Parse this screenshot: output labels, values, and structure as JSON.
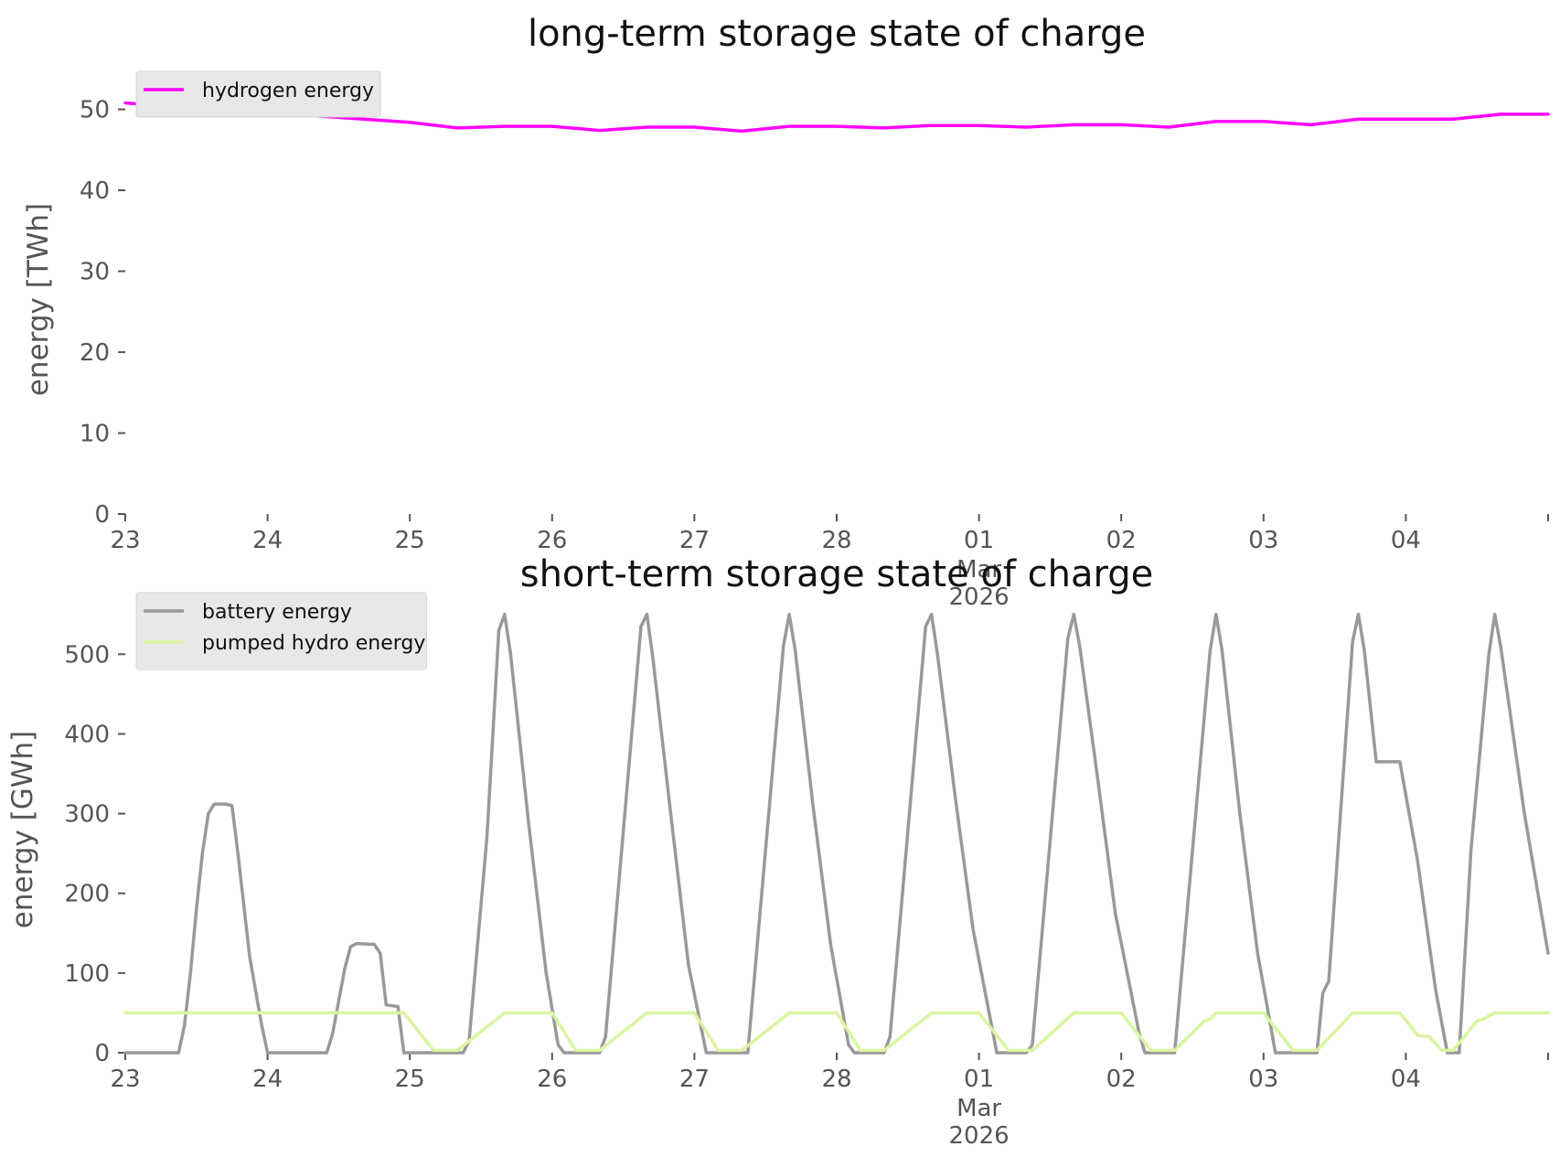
{
  "chart_data": [
    {
      "type": "line",
      "title": "long-term storage state of charge",
      "xlabel": "",
      "ylabel": "energy [TWh]",
      "x_range": [
        "2026-02-23",
        "2026-03-05"
      ],
      "ylim": [
        0,
        53
      ],
      "yticks": [
        0,
        10,
        20,
        30,
        40,
        50
      ],
      "xtick_labels": [
        "23",
        "24",
        "25",
        "26",
        "27",
        "28",
        "01",
        "02",
        "03",
        "04",
        ""
      ],
      "x_month_label": "Mar",
      "x_year_label": "2026",
      "grid": false,
      "legend": "upper-left",
      "series": [
        {
          "name": "hydrogen energy",
          "color": "#ff00ff",
          "points": [
            [
              "2026-02-23T00:00",
              50.8
            ],
            [
              "2026-02-23T12:00",
              50.0
            ],
            [
              "2026-02-24T00:00",
              49.6
            ],
            [
              "2026-02-24T12:00",
              49.0
            ],
            [
              "2026-02-25T00:00",
              48.4
            ],
            [
              "2026-02-25T08:00",
              47.7
            ],
            [
              "2026-02-25T16:00",
              47.9
            ],
            [
              "2026-02-26T00:00",
              47.9
            ],
            [
              "2026-02-26T08:00",
              47.4
            ],
            [
              "2026-02-26T16:00",
              47.8
            ],
            [
              "2026-02-27T00:00",
              47.8
            ],
            [
              "2026-02-27T08:00",
              47.3
            ],
            [
              "2026-02-27T16:00",
              47.9
            ],
            [
              "2026-02-28T00:00",
              47.9
            ],
            [
              "2026-02-28T08:00",
              47.7
            ],
            [
              "2026-02-28T16:00",
              48.0
            ],
            [
              "2026-03-01T00:00",
              48.0
            ],
            [
              "2026-03-01T08:00",
              47.8
            ],
            [
              "2026-03-01T16:00",
              48.1
            ],
            [
              "2026-03-02T00:00",
              48.1
            ],
            [
              "2026-03-02T08:00",
              47.8
            ],
            [
              "2026-03-02T16:00",
              48.5
            ],
            [
              "2026-03-03T00:00",
              48.5
            ],
            [
              "2026-03-03T08:00",
              48.1
            ],
            [
              "2026-03-03T16:00",
              48.8
            ],
            [
              "2026-03-04T00:00",
              48.8
            ],
            [
              "2026-03-04T08:00",
              48.8
            ],
            [
              "2026-03-04T16:00",
              49.4
            ],
            [
              "2026-03-05T00:00",
              49.4
            ]
          ]
        }
      ]
    },
    {
      "type": "line",
      "title": "short-term storage state of charge",
      "xlabel": "",
      "ylabel": "energy [GWh]",
      "x_range": [
        "2026-02-23",
        "2026-03-05"
      ],
      "ylim": [
        0,
        560
      ],
      "yticks": [
        0,
        100,
        200,
        300,
        400,
        500
      ],
      "xtick_labels": [
        "23",
        "24",
        "25",
        "26",
        "27",
        "28",
        "01",
        "02",
        "03",
        "04",
        ""
      ],
      "x_month_label": "Mar",
      "x_year_label": "2026",
      "grid": false,
      "legend": "upper-left",
      "series": [
        {
          "name": "battery energy",
          "color": "#999999",
          "points": [
            [
              "2026-02-23T00:00",
              0
            ],
            [
              "2026-02-23T09:00",
              0
            ],
            [
              "2026-02-23T10:00",
              35
            ],
            [
              "2026-02-23T11:00",
              100
            ],
            [
              "2026-02-23T12:00",
              180
            ],
            [
              "2026-02-23T13:00",
              250
            ],
            [
              "2026-02-23T14:00",
              300
            ],
            [
              "2026-02-23T15:00",
              312
            ],
            [
              "2026-02-23T17:00",
              312
            ],
            [
              "2026-02-23T18:00",
              310
            ],
            [
              "2026-02-23T19:00",
              250
            ],
            [
              "2026-02-23T21:00",
              120
            ],
            [
              "2026-02-23T23:00",
              35
            ],
            [
              "2026-02-24T00:00",
              0
            ],
            [
              "2026-02-24T10:00",
              0
            ],
            [
              "2026-02-24T11:00",
              25
            ],
            [
              "2026-02-24T13:00",
              105
            ],
            [
              "2026-02-24T14:00",
              133
            ],
            [
              "2026-02-24T15:00",
              137
            ],
            [
              "2026-02-24T18:00",
              136
            ],
            [
              "2026-02-24T19:00",
              125
            ],
            [
              "2026-02-24T20:00",
              60
            ],
            [
              "2026-02-24T22:00",
              58
            ],
            [
              "2026-02-24T23:00",
              0
            ],
            [
              "2026-02-25T09:00",
              0
            ],
            [
              "2026-02-25T10:00",
              15
            ],
            [
              "2026-02-25T13:00",
              270
            ],
            [
              "2026-02-25T15:00",
              530
            ],
            [
              "2026-02-25T16:00",
              550
            ],
            [
              "2026-02-25T17:00",
              500
            ],
            [
              "2026-02-25T20:00",
              290
            ],
            [
              "2026-02-25T23:00",
              100
            ],
            [
              "2026-02-26T01:00",
              10
            ],
            [
              "2026-02-26T02:00",
              0
            ],
            [
              "2026-02-26T08:00",
              0
            ],
            [
              "2026-02-26T09:00",
              20
            ],
            [
              "2026-02-26T15:00",
              535
            ],
            [
              "2026-02-26T16:00",
              550
            ],
            [
              "2026-02-26T17:00",
              495
            ],
            [
              "2026-02-26T20:00",
              300
            ],
            [
              "2026-02-26T23:00",
              110
            ],
            [
              "2026-02-27T02:00",
              0
            ],
            [
              "2026-02-27T09:00",
              0
            ],
            [
              "2026-02-27T15:00",
              510
            ],
            [
              "2026-02-27T16:00",
              550
            ],
            [
              "2026-02-27T17:00",
              505
            ],
            [
              "2026-02-27T20:00",
              310
            ],
            [
              "2026-02-27T23:00",
              135
            ],
            [
              "2026-02-28T02:00",
              10
            ],
            [
              "2026-02-28T03:00",
              0
            ],
            [
              "2026-02-28T08:00",
              0
            ],
            [
              "2026-02-28T09:00",
              20
            ],
            [
              "2026-02-28T15:00",
              535
            ],
            [
              "2026-02-28T16:00",
              550
            ],
            [
              "2026-02-28T17:00",
              500
            ],
            [
              "2026-02-28T20:00",
              320
            ],
            [
              "2026-02-28T23:00",
              155
            ],
            [
              "2026-03-01T03:00",
              0
            ],
            [
              "2026-03-01T08:00",
              0
            ],
            [
              "2026-03-01T09:00",
              10
            ],
            [
              "2026-03-01T15:00",
              520
            ],
            [
              "2026-03-01T16:00",
              550
            ],
            [
              "2026-03-01T17:00",
              510
            ],
            [
              "2026-03-01T20:00",
              345
            ],
            [
              "2026-03-01T23:00",
              175
            ],
            [
              "2026-03-02T03:00",
              25
            ],
            [
              "2026-03-02T04:00",
              0
            ],
            [
              "2026-03-02T09:00",
              0
            ],
            [
              "2026-03-02T15:00",
              505
            ],
            [
              "2026-03-02T16:00",
              550
            ],
            [
              "2026-03-02T17:00",
              505
            ],
            [
              "2026-03-02T20:00",
              300
            ],
            [
              "2026-03-02T23:00",
              125
            ],
            [
              "2026-03-03T02:00",
              0
            ],
            [
              "2026-03-03T09:00",
              0
            ],
            [
              "2026-03-03T10:00",
              75
            ],
            [
              "2026-03-03T11:00",
              90
            ],
            [
              "2026-03-03T15:00",
              515
            ],
            [
              "2026-03-03T16:00",
              550
            ],
            [
              "2026-03-03T17:00",
              505
            ],
            [
              "2026-03-03T19:00",
              365
            ],
            [
              "2026-03-03T23:00",
              365
            ],
            [
              "2026-03-04T02:00",
              240
            ],
            [
              "2026-03-04T05:00",
              80
            ],
            [
              "2026-03-04T07:00",
              0
            ],
            [
              "2026-03-04T09:00",
              0
            ],
            [
              "2026-03-04T11:00",
              255
            ],
            [
              "2026-03-04T14:00",
              500
            ],
            [
              "2026-03-04T15:00",
              550
            ],
            [
              "2026-03-04T16:00",
              510
            ],
            [
              "2026-03-04T20:00",
              300
            ],
            [
              "2026-03-05T00:00",
              125
            ]
          ]
        },
        {
          "name": "pumped hydro energy",
          "color": "#d9f5a0",
          "points": [
            [
              "2026-02-23T00:00",
              50
            ],
            [
              "2026-02-24T23:00",
              50
            ],
            [
              "2026-02-25T04:00",
              3
            ],
            [
              "2026-02-25T08:00",
              3
            ],
            [
              "2026-02-25T16:00",
              50
            ],
            [
              "2026-02-26T00:00",
              50
            ],
            [
              "2026-02-26T04:00",
              3
            ],
            [
              "2026-02-26T08:00",
              3
            ],
            [
              "2026-02-26T16:00",
              50
            ],
            [
              "2026-02-27T00:00",
              50
            ],
            [
              "2026-02-27T04:00",
              3
            ],
            [
              "2026-02-27T08:00",
              3
            ],
            [
              "2026-02-27T16:00",
              50
            ],
            [
              "2026-02-28T00:00",
              50
            ],
            [
              "2026-02-28T04:00",
              3
            ],
            [
              "2026-02-28T08:00",
              3
            ],
            [
              "2026-02-28T16:00",
              50
            ],
            [
              "2026-03-01T00:00",
              50
            ],
            [
              "2026-03-01T05:00",
              3
            ],
            [
              "2026-03-01T09:00",
              3
            ],
            [
              "2026-03-01T16:00",
              50
            ],
            [
              "2026-03-02T00:00",
              50
            ],
            [
              "2026-03-02T05:00",
              3
            ],
            [
              "2026-03-02T09:00",
              3
            ],
            [
              "2026-03-02T14:00",
              40
            ],
            [
              "2026-03-02T15:00",
              42
            ],
            [
              "2026-03-02T16:00",
              50
            ],
            [
              "2026-03-03T00:00",
              50
            ],
            [
              "2026-03-03T05:00",
              3
            ],
            [
              "2026-03-03T09:00",
              3
            ],
            [
              "2026-03-03T15:00",
              50
            ],
            [
              "2026-03-03T23:00",
              50
            ],
            [
              "2026-03-04T02:00",
              22
            ],
            [
              "2026-03-04T04:00",
              20
            ],
            [
              "2026-03-04T06:00",
              3
            ],
            [
              "2026-03-04T08:00",
              3
            ],
            [
              "2026-03-04T12:00",
              40
            ],
            [
              "2026-03-04T13:00",
              42
            ],
            [
              "2026-03-04T15:00",
              50
            ],
            [
              "2026-03-05T00:00",
              50
            ]
          ]
        }
      ]
    }
  ]
}
